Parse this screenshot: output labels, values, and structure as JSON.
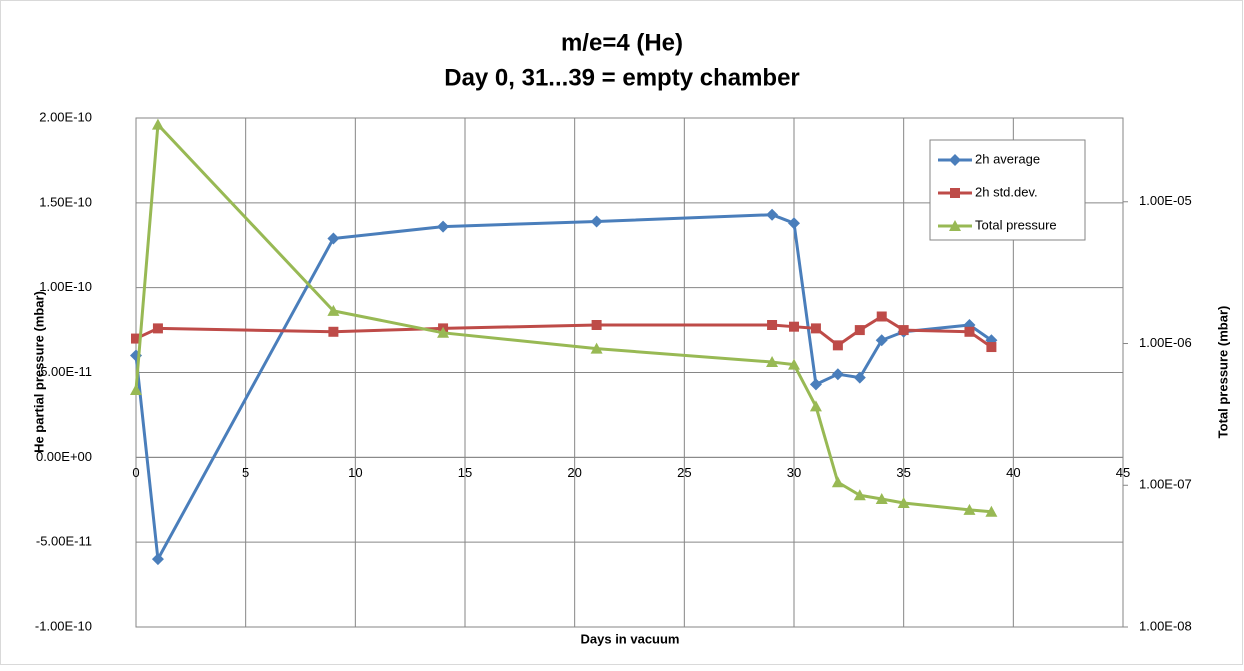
{
  "chart_data": {
    "type": "line",
    "title": "m/e=4 (He)",
    "subtitle": "Day 0, 31...39 = empty chamber",
    "x_label": "Days in vacuum",
    "y_label": "He partial pressure (mbar)",
    "y2_label": "Total pressure (mbar)",
    "xlim": [
      0,
      45
    ],
    "xticks": [
      0,
      5,
      10,
      15,
      20,
      25,
      30,
      35,
      40,
      45
    ],
    "ylim": [
      -1e-10,
      2e-10
    ],
    "yticks": [
      {
        "value": -1e-10,
        "label": "-1.00E-10"
      },
      {
        "value": -5e-11,
        "label": "-5.00E-11"
      },
      {
        "value": 0,
        "label": "0.00E+00"
      },
      {
        "value": 5e-11,
        "label": "5.00E-11"
      },
      {
        "value": 1e-10,
        "label": "1.00E-10"
      },
      {
        "value": 1.5e-10,
        "label": "1.50E-10"
      },
      {
        "value": 2e-10,
        "label": "2.00E-10"
      }
    ],
    "y2lim": [
      1e-08,
      3.9e-05
    ],
    "y2log": true,
    "y2ticks": [
      {
        "value": 1e-08,
        "label": "1.00E-08"
      },
      {
        "value": 1e-07,
        "label": "1.00E-07"
      },
      {
        "value": 1e-06,
        "label": "1.00E-06"
      },
      {
        "value": 1e-05,
        "label": "1.00E-05"
      }
    ],
    "grid": true,
    "legend": "top-right",
    "series": [
      {
        "name": "2h average",
        "color": "#4a7ebb",
        "marker": "diamond",
        "x": [
          0,
          1,
          9,
          14,
          21,
          29,
          30,
          31,
          32,
          33,
          34,
          35,
          38,
          39
        ],
        "values": [
          6e-11,
          -6e-11,
          1.29e-10,
          1.36e-10,
          1.39e-10,
          1.43e-10,
          1.38e-10,
          4.3e-11,
          4.9e-11,
          4.7e-11,
          6.9e-11,
          7.4e-11,
          7.8e-11,
          6.9e-11
        ]
      },
      {
        "name": "2h std.dev.",
        "color": "#be4b48",
        "marker": "square",
        "x": [
          0,
          1,
          9,
          14,
          21,
          29,
          30,
          31,
          32,
          33,
          34,
          35,
          38,
          39
        ],
        "values": [
          7e-11,
          7.6e-11,
          7.4e-11,
          7.6e-11,
          7.8e-11,
          7.8e-11,
          7.7e-11,
          7.6e-11,
          6.6e-11,
          7.5e-11,
          8.3e-11,
          7.5e-11,
          7.4e-11,
          6.5e-11
        ]
      },
      {
        "name": "Total pressure",
        "color": "#98b954",
        "marker": "triangle",
        "axis": "y2",
        "x": [
          0,
          1,
          9,
          14,
          21,
          29,
          30,
          31,
          32,
          33,
          34,
          35,
          38,
          39
        ],
        "values": [
          4.7e-07,
          3.5e-05,
          1.7e-06,
          1.19e-06,
          9.2e-07,
          7.4e-07,
          7.1e-07,
          3.6e-07,
          1.05e-07,
          8.5e-08,
          8e-08,
          7.5e-08,
          6.7e-08,
          6.5e-08
        ]
      }
    ]
  }
}
